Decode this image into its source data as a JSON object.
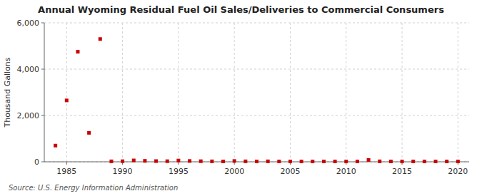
{
  "chart_data": {
    "type": "scatter",
    "title": "Annual Wyoming Residual Fuel Oil Sales/Deliveries to Commercial Consumers",
    "ylabel": "Thousand Gallons",
    "annotations": [
      "Source: U.S. Energy Information Administration"
    ],
    "color": "#cc0000",
    "marker": "square",
    "grid": true,
    "xlim": [
      1983,
      2021
    ],
    "xticks": [
      1985,
      1990,
      1995,
      2000,
      2005,
      2010,
      2015,
      2020
    ],
    "ylim": [
      0,
      6000
    ],
    "yticks": [
      0,
      {
        "value": 2000,
        "label": "2,000"
      },
      {
        "value": 4000,
        "label": "4,000"
      },
      {
        "value": 6000,
        "label": "6,000"
      }
    ],
    "x": [
      1984,
      1985,
      1986,
      1987,
      1988,
      1989,
      1990,
      1991,
      1992,
      1993,
      1994,
      1995,
      1996,
      1997,
      1998,
      1999,
      2000,
      2001,
      2002,
      2003,
      2004,
      2005,
      2006,
      2007,
      2008,
      2009,
      2010,
      2011,
      2012,
      2013,
      2014,
      2015,
      2016,
      2017,
      2018,
      2019,
      2020
    ],
    "values": [
      700,
      2650,
      4750,
      1250,
      5300,
      20,
      25,
      60,
      40,
      30,
      25,
      55,
      35,
      25,
      20,
      15,
      35,
      20,
      15,
      20,
      15,
      15,
      15,
      15,
      15,
      15,
      15,
      15,
      80,
      20,
      15,
      15,
      15,
      15,
      15,
      15,
      15
    ]
  }
}
